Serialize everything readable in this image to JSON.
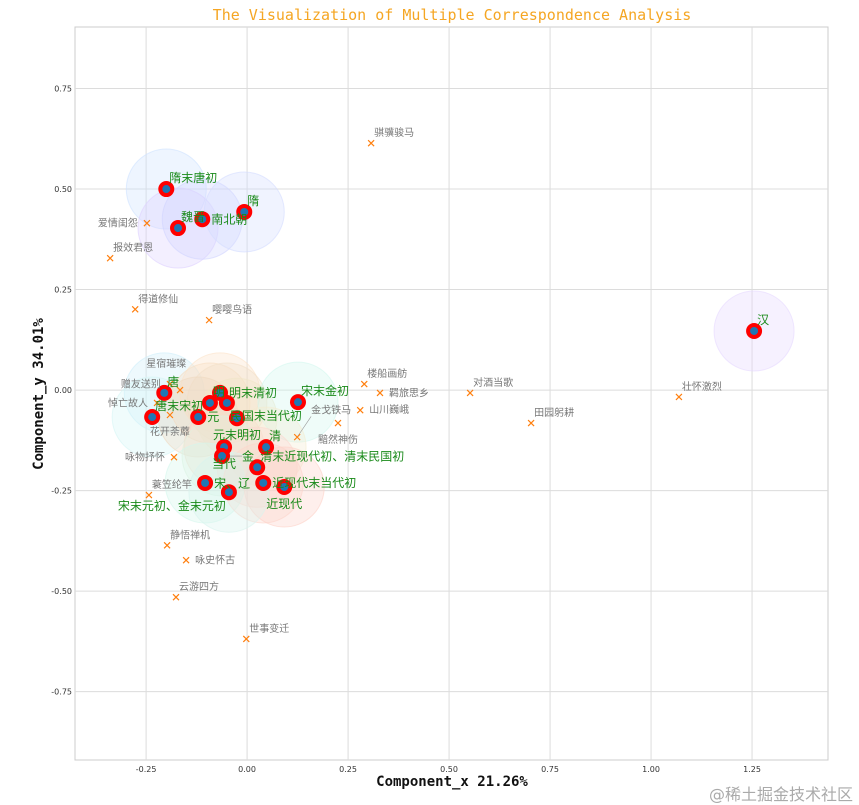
{
  "chart_data": {
    "type": "scatter",
    "title": "The Visualization of Multiple Correspondence Analysis",
    "xlabel": "Component_x 21.26%",
    "ylabel": "Component_y 34.01%",
    "xlim": [
      -0.426,
      1.438
    ],
    "ylim": [
      -0.92,
      0.903
    ],
    "grid": true,
    "xticks": [
      "-0.25",
      "0.00",
      "0.25",
      "0.50",
      "0.75",
      "1.00",
      "1.25"
    ],
    "xtick_values": [
      -0.25,
      0,
      0.25,
      0.5,
      0.75,
      1.0,
      1.25
    ],
    "yticks": [
      "-0.75",
      "-0.50",
      "-0.25",
      "0.00",
      "0.25",
      "0.50",
      "0.75"
    ],
    "ytick_values": [
      -0.75,
      -0.5,
      -0.25,
      0,
      0.25,
      0.5,
      0.75
    ],
    "colors": {
      "period_marker": "#ff0000",
      "period_center": "#1f77b4",
      "period_label": "#1a8a1a",
      "theme_marker": "#ff7f0e",
      "theme_label": "#777777",
      "title": "#f5a623"
    },
    "periods": [
      {
        "label": "隋末唐初",
        "x": -0.2,
        "y": 0.5,
        "halo": "#cfe2ff"
      },
      {
        "label": "魏晋",
        "x": -0.171,
        "y": 0.403,
        "halo": "#ddd0ff"
      },
      {
        "label": "南北朝",
        "x": -0.111,
        "y": 0.425,
        "halo": "#d0d4ff"
      },
      {
        "label": "隋",
        "x": -0.007,
        "y": 0.443,
        "halo": "#d4dcff"
      },
      {
        "label": "汉",
        "x": 1.255,
        "y": 0.147,
        "halo": "#e6d8ff"
      },
      {
        "label": "唐",
        "x": -0.205,
        "y": -0.007,
        "halo": "#cfeefa"
      },
      {
        "label": "唐末宋初",
        "x": -0.235,
        "y": -0.067,
        "halo": "#d5f5f5"
      },
      {
        "label": "明",
        "x": -0.092,
        "y": -0.032,
        "halo": "#f5dcc0"
      },
      {
        "label": "明末清初",
        "x": -0.067,
        "y": -0.007,
        "halo": "#fbe3c8"
      },
      {
        "label": "民国末当代初",
        "x": -0.05,
        "y": -0.032,
        "halo": "#f2e0c8"
      },
      {
        "label": "元",
        "x": -0.121,
        "y": -0.067,
        "halo": "#efd8bf"
      },
      {
        "label": "元末明初",
        "x": -0.025,
        "y": -0.07,
        "halo": "#f0e6c8"
      },
      {
        "label": "宋末金初",
        "x": 0.126,
        "y": -0.03,
        "halo": "#d2f7ef"
      },
      {
        "label": "当代",
        "x": -0.057,
        "y": -0.142,
        "halo": "#f7d8c8"
      },
      {
        "label": "清",
        "x": 0.047,
        "y": -0.142,
        "halo": "#f4ecd0"
      },
      {
        "label": "金",
        "x": -0.062,
        "y": -0.164,
        "halo": "#dff2e0"
      },
      {
        "label": "清末近现代初、清末民国初",
        "x": 0.025,
        "y": -0.192,
        "halo": "#fbd8d0"
      },
      {
        "label": "宋、辽",
        "x": -0.104,
        "y": -0.231,
        "halo": "#d4f6ec"
      },
      {
        "label": "近现代末当代初",
        "x": 0.04,
        "y": -0.231,
        "halo": "#fdd6cc"
      },
      {
        "label": "近现代",
        "x": 0.092,
        "y": -0.241,
        "halo": "#fdd2c8"
      },
      {
        "label": "宋末元初、金末元初",
        "x": -0.045,
        "y": -0.254,
        "halo": "#d8f4ee"
      }
    ],
    "themes": [
      {
        "label": "骐骥骏马",
        "x": 0.307,
        "y": 0.614
      },
      {
        "label": "爱情闺怨",
        "x": -0.248,
        "y": 0.415
      },
      {
        "label": "报效君恩",
        "x": -0.339,
        "y": 0.328
      },
      {
        "label": "得道修仙",
        "x": -0.277,
        "y": 0.201
      },
      {
        "label": "嘤嘤鸟语",
        "x": -0.094,
        "y": 0.174
      },
      {
        "label": "赠友送别",
        "x": -0.191,
        "y": 0.015
      },
      {
        "label": "星宿璀璨",
        "x": -0.166,
        "y": 0.0
      },
      {
        "label": "悼亡故人",
        "x": -0.223,
        "y": -0.032
      },
      {
        "label": "花开荼蘼",
        "x": -0.191,
        "y": -0.062
      },
      {
        "label": "楼船画舫",
        "x": 0.29,
        "y": 0.015
      },
      {
        "label": "羁旅思乡",
        "x": 0.329,
        "y": -0.007
      },
      {
        "label": "山川巍峨",
        "x": 0.28,
        "y": -0.05
      },
      {
        "label": "黯然神伤",
        "x": 0.225,
        "y": -0.082
      },
      {
        "label": "金戈铁马",
        "x": 0.124,
        "y": -0.117
      },
      {
        "label": "咏物抒怀",
        "x": -0.181,
        "y": -0.167
      },
      {
        "label": "蓑笠纶竿",
        "x": -0.243,
        "y": -0.261
      },
      {
        "label": "对酒当歌",
        "x": 0.552,
        "y": -0.007
      },
      {
        "label": "田园躬耕",
        "x": 0.703,
        "y": -0.082
      },
      {
        "label": "壮怀激烈",
        "x": 1.069,
        "y": -0.017
      },
      {
        "label": "静悟禅机",
        "x": -0.198,
        "y": -0.386
      },
      {
        "label": "咏史怀古",
        "x": -0.151,
        "y": -0.423
      },
      {
        "label": "云游四方",
        "x": -0.176,
        "y": -0.515
      },
      {
        "label": "世事变迁",
        "x": -0.002,
        "y": -0.619
      }
    ]
  },
  "watermark": "@稀土掘金技术社区"
}
